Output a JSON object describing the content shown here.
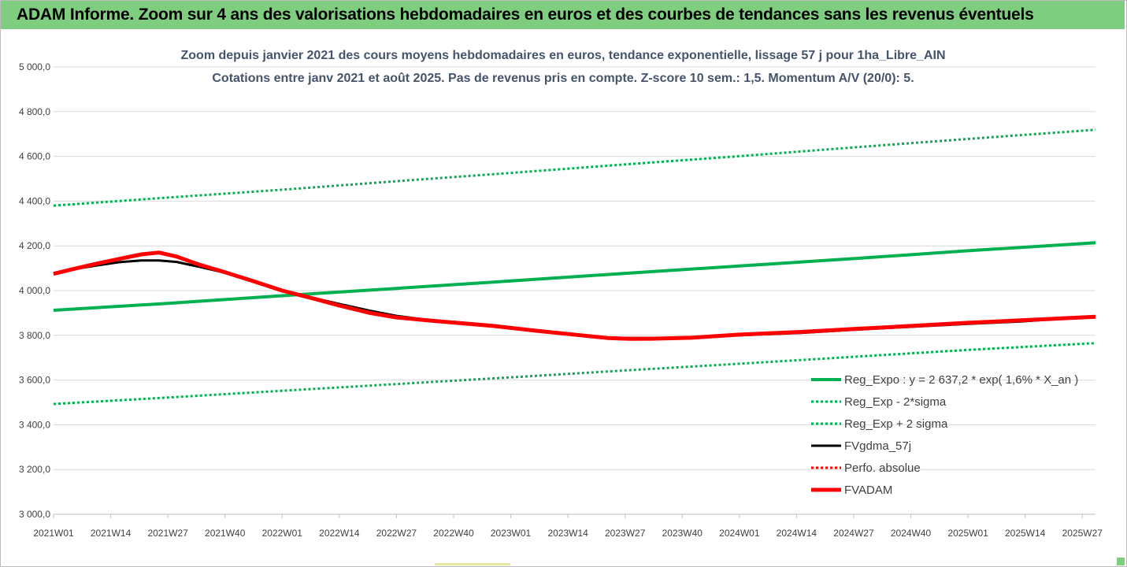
{
  "banner": {
    "title": "ADAM Informe. Zoom sur 4 ans des valorisations hebdomadaires en euros et des courbes de tendances sans les revenus éventuels",
    "color": "#7fce7f"
  },
  "chart_data": {
    "type": "line",
    "title": "Zoom depuis janvier 2021 des cours moyens hebdomadaires en euros, tendance exponentielle, lissage 57 j pour 1ha_Libre_AIN",
    "subtitle": "Cotations entre janv 2021 et août 2025.  Pas de revenus pris en compte. Z-score 10 sem.: 1,5. Momentum A/V (20/0): 5.",
    "xlabel": "",
    "ylabel": "",
    "ylim": [
      3000,
      5000
    ],
    "ytick_values": [
      3000,
      3200,
      3400,
      3600,
      3800,
      4000,
      4200,
      4400,
      4600,
      4800,
      5000
    ],
    "ytick_labels": [
      "3 000,0",
      "3 200,0",
      "3 400,0",
      "3 600,0",
      "3 800,0",
      "4 000,0",
      "4 200,0",
      "4 400,0",
      "4 600,0",
      "4 800,0",
      "5 000,0"
    ],
    "x_range": [
      0,
      237
    ],
    "x_tick_index": [
      0,
      13,
      26,
      39,
      52,
      65,
      78,
      91,
      104,
      117,
      130,
      143,
      156,
      169,
      182,
      195,
      208,
      221,
      234
    ],
    "x_categories": [
      "2021W01",
      "2021W14",
      "2021W27",
      "2021W40",
      "2022W01",
      "2022W14",
      "2022W27",
      "2022W40",
      "2023W01",
      "2023W14",
      "2023W27",
      "2023W40",
      "2024W01",
      "2024W14",
      "2024W27",
      "2024W40",
      "2025W01",
      "2025W14",
      "2025W27"
    ],
    "grid": "horizontal",
    "legend_position": "bottom-right",
    "series": [
      {
        "name": "Reg_Expo : y = 2 637,2 * exp( 1,6% *  X_an )",
        "color": "#00b050",
        "style": "solid",
        "width": 4,
        "x": [
          0,
          26,
          52,
          78,
          104,
          130,
          156,
          182,
          208,
          237
        ],
        "y": [
          3912,
          3943,
          3977,
          4010,
          4043,
          4077,
          4110,
          4143,
          4178,
          4214
        ]
      },
      {
        "name": "Reg_Exp - 2*sigma",
        "color": "#00b050",
        "style": "dotted",
        "width": 3,
        "x": [
          0,
          26,
          52,
          78,
          104,
          130,
          156,
          182,
          208,
          237
        ],
        "y": [
          3493,
          3522,
          3552,
          3582,
          3612,
          3643,
          3673,
          3704,
          3735,
          3765
        ]
      },
      {
        "name": "Reg_Exp + 2 sigma",
        "color": "#00b050",
        "style": "dotted",
        "width": 3,
        "x": [
          0,
          26,
          52,
          78,
          104,
          130,
          156,
          182,
          208,
          237
        ],
        "y": [
          4380,
          4416,
          4451,
          4489,
          4526,
          4564,
          4601,
          4640,
          4678,
          4719
        ]
      },
      {
        "name": "FVgdma_57j",
        "color": "#000000",
        "style": "solid",
        "width": 3,
        "x": [
          0,
          5,
          10,
          15,
          20,
          24,
          28,
          33,
          38,
          45,
          52,
          60,
          65,
          72,
          78,
          85,
          91,
          100,
          110,
          120,
          126,
          131,
          136,
          145,
          156,
          170,
          182,
          195,
          208,
          220,
          237
        ],
        "y": [
          4075,
          4097,
          4113,
          4127,
          4135,
          4135,
          4128,
          4107,
          4084,
          4047,
          4000,
          3963,
          3940,
          3910,
          3887,
          3869,
          3860,
          3845,
          3822,
          3802,
          3790,
          3788,
          3788,
          3789,
          3800,
          3811,
          3825,
          3838,
          3851,
          3862,
          3885
        ]
      },
      {
        "name": "Perfo. absolue",
        "color": "#ff0000",
        "style": "dotted",
        "width": 3,
        "x": [],
        "y": []
      },
      {
        "name": "FVADAM",
        "color": "#ff0000",
        "style": "solid",
        "width": 5,
        "x": [
          0,
          5,
          10,
          15,
          20,
          24,
          28,
          33,
          38,
          45,
          52,
          60,
          65,
          72,
          78,
          85,
          91,
          100,
          110,
          120,
          126,
          131,
          136,
          145,
          156,
          170,
          182,
          195,
          208,
          220,
          237
        ],
        "y": [
          4075,
          4099,
          4121,
          4142,
          4162,
          4170,
          4152,
          4117,
          4088,
          4045,
          4000,
          3960,
          3933,
          3900,
          3880,
          3867,
          3857,
          3842,
          3820,
          3800,
          3788,
          3784,
          3785,
          3789,
          3803,
          3815,
          3828,
          3842,
          3856,
          3867,
          3883
        ]
      }
    ]
  }
}
